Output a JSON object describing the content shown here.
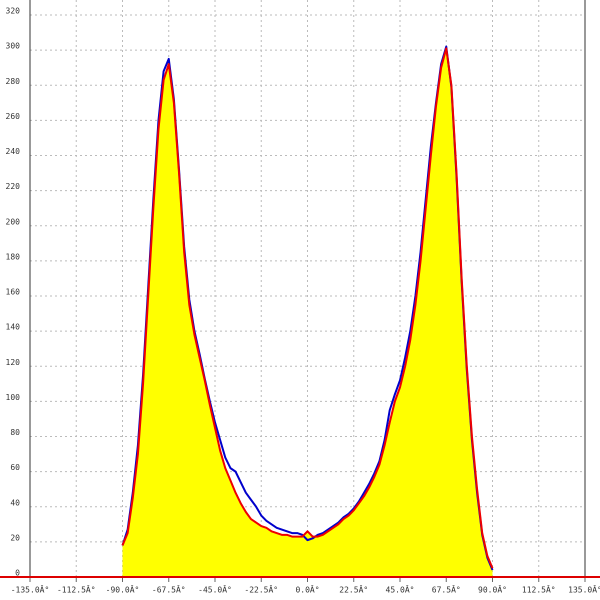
{
  "chart_data": {
    "type": "line",
    "x": [
      -90,
      -87.5,
      -85,
      -82.5,
      -80,
      -77.5,
      -75,
      -72.5,
      -70,
      -67.5,
      -65,
      -62.5,
      -60,
      -57.5,
      -55,
      -52.5,
      -50,
      -47.5,
      -45,
      -42.5,
      -40,
      -37.5,
      -35,
      -32.5,
      -30,
      -27.5,
      -25,
      -22.5,
      -20,
      -17.5,
      -15,
      -12.5,
      -10,
      -7.5,
      -5,
      -2.5,
      0,
      2.5,
      5,
      7.5,
      10,
      12.5,
      15,
      17.5,
      20,
      22.5,
      25,
      27.5,
      30,
      32.5,
      35,
      37.5,
      40,
      42.5,
      45,
      47.5,
      50,
      52.5,
      55,
      57.5,
      60,
      62.5,
      65,
      67.5,
      70,
      72.5,
      75,
      77.5,
      80,
      82.5,
      85,
      87.5,
      90
    ],
    "series": [
      {
        "color": "#0000cc",
        "values": [
          18,
          27,
          48,
          75,
          115,
          165,
          215,
          260,
          288,
          295,
          272,
          232,
          188,
          158,
          140,
          127,
          113,
          100,
          88,
          78,
          68,
          62,
          60,
          54,
          48,
          44,
          40,
          35,
          32,
          30,
          28,
          27,
          26,
          25,
          25,
          24,
          21,
          22,
          24,
          25,
          27,
          29,
          31,
          34,
          36,
          39,
          43,
          48,
          53,
          59,
          66,
          78,
          95,
          104,
          112,
          125,
          140,
          160,
          185,
          215,
          245,
          270,
          292,
          302,
          279,
          228,
          168,
          118,
          78,
          48,
          24,
          11,
          4
        ]
      },
      {
        "color": "#ee0000",
        "fill": "#ffff00",
        "values": [
          18,
          25,
          45,
          70,
          110,
          160,
          210,
          255,
          283,
          292,
          270,
          230,
          185,
          155,
          138,
          125,
          112,
          98,
          85,
          72,
          62,
          55,
          48,
          42,
          37,
          33,
          31,
          29,
          28,
          26,
          25,
          24,
          24,
          23,
          23,
          23,
          26,
          23,
          23,
          24,
          26,
          28,
          30,
          33,
          35,
          38,
          42,
          46,
          51,
          57,
          64,
          75,
          88,
          100,
          108,
          120,
          135,
          155,
          180,
          210,
          240,
          268,
          290,
          301,
          280,
          230,
          170,
          120,
          80,
          50,
          25,
          12,
          5
        ]
      }
    ],
    "xlim": [
      -135,
      135
    ],
    "ylim": [
      0,
      320
    ],
    "xticks": [
      {
        "value": -135,
        "label": "-135.0Â°"
      },
      {
        "value": -112.5,
        "label": "-112.5Â°"
      },
      {
        "value": -90,
        "label": "-90.0Â°"
      },
      {
        "value": -67.5,
        "label": "-67.5Â°"
      },
      {
        "value": -45,
        "label": "-45.0Â°"
      },
      {
        "value": -22.5,
        "label": "-22.5Â°"
      },
      {
        "value": 0,
        "label": "0.0Â°"
      },
      {
        "value": 22.5,
        "label": "22.5Â°"
      },
      {
        "value": 45,
        "label": "45.0Â°"
      },
      {
        "value": 67.5,
        "label": "67.5Â°"
      },
      {
        "value": 90,
        "label": "90.0Â°"
      },
      {
        "value": 112.5,
        "label": "112.5Â°"
      },
      {
        "value": 135,
        "label": "135.0Â°"
      }
    ],
    "yticks": [
      0,
      20,
      40,
      60,
      80,
      100,
      120,
      140,
      160,
      180,
      200,
      220,
      240,
      260,
      280,
      300,
      320
    ],
    "grid": true,
    "axis_color": "#dd0000"
  }
}
